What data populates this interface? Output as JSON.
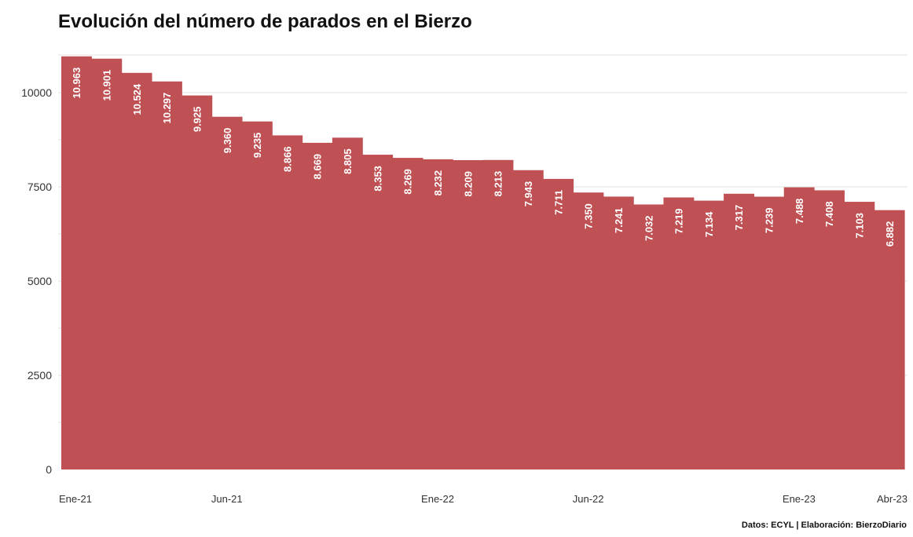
{
  "title": "Evolución del número de parados en el Bierzo",
  "source": "Datos: ECYL | Elaboración: BierzoDiario",
  "colors": {
    "bar": "#bf5054",
    "grid": "#e0e0e0",
    "label": "#ffffff"
  },
  "chart_data": {
    "type": "area",
    "title": "Evolución del número de parados en el Bierzo",
    "xlabel": "",
    "ylabel": "",
    "ylim": [
      0,
      11000
    ],
    "yticks": [
      0,
      2500,
      5000,
      7500,
      10000
    ],
    "grid": true,
    "x_tick_labels": [
      {
        "index": 0,
        "label": "Ene-21"
      },
      {
        "index": 5,
        "label": "Jun-21"
      },
      {
        "index": 12,
        "label": "Ene-22"
      },
      {
        "index": 17,
        "label": "Jun-22"
      },
      {
        "index": 24,
        "label": "Ene-23"
      },
      {
        "index": 27,
        "label": "Abr-23"
      }
    ],
    "values": [
      10963,
      10901,
      10524,
      10297,
      9925,
      9360,
      9235,
      8866,
      8669,
      8805,
      8353,
      8269,
      8232,
      8209,
      8213,
      7943,
      7711,
      7350,
      7241,
      7032,
      7219,
      7134,
      7317,
      7239,
      7488,
      7408,
      7103,
      6882
    ],
    "data_labels": [
      "10.963",
      "10.901",
      "10.524",
      "10.297",
      "9.925",
      "9.360",
      "9.235",
      "8.866",
      "8.669",
      "8.805",
      "8.353",
      "8.269",
      "8.232",
      "8.209",
      "8.213",
      "7.943",
      "7.711",
      "7.350",
      "7.241",
      "7.032",
      "7.219",
      "7.134",
      "7.317",
      "7.239",
      "7.488",
      "7.408",
      "7.103",
      "6.882"
    ]
  }
}
